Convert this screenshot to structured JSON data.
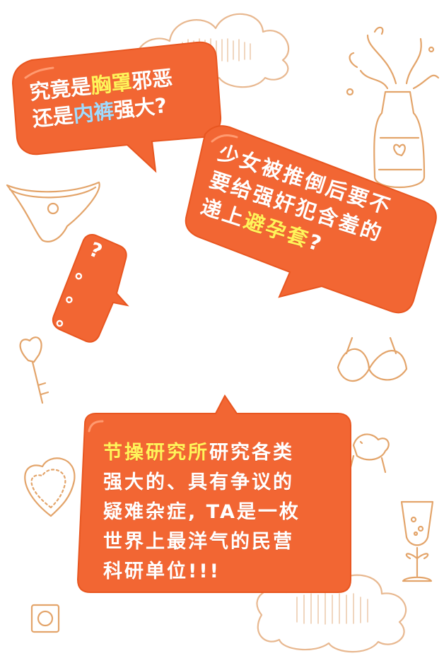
{
  "bubble1": {
    "line1_prefix": "究竟是",
    "line1_highlight": "胸罩",
    "line1_suffix": "邪恶",
    "line2_prefix": "还是",
    "line2_highlight": "内裤",
    "line2_suffix": "强大?"
  },
  "bubble2": {
    "line1": "少女被推倒后要不",
    "line2": "要给强奸犯含羞的",
    "line3_prefix": "递上",
    "line3_highlight": "避孕套",
    "line3_suffix": "?"
  },
  "bubble3": {
    "line1": "?",
    "line2": "。",
    "line3": "。",
    "line4": "。"
  },
  "bubble4": {
    "line1_highlight": "节操研究所",
    "line1_suffix": "研究各类",
    "line2": "强大的、具有争议的",
    "line3": "疑难杂症, TA是一枚",
    "line4": "世界上最洋气的民营",
    "line5": "科研单位!!!"
  },
  "colors": {
    "bubble_fill": "#f26633",
    "bubble_stroke": "#e85620",
    "doodle_line": "#e3a46a",
    "highlight_yellow": "#fff45a",
    "highlight_blue": "#9fdcff"
  },
  "icons": [
    "cloud-icon",
    "champagne-bottle-icon",
    "panties-icon",
    "key-heart-icon",
    "bra-icon",
    "heart-frame-icon",
    "dog-icon",
    "wine-glass-icon",
    "condom-icon"
  ]
}
